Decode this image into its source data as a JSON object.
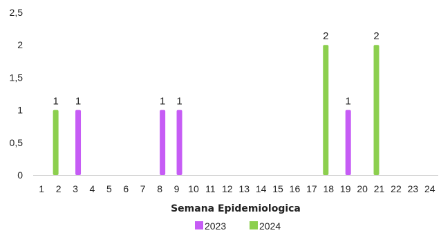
{
  "chart_data": {
    "type": "bar",
    "title": "",
    "xlabel": "Semana Epidemiologica",
    "ylabel": "",
    "ylim": [
      0,
      2.5
    ],
    "yticks": [
      "0",
      "0,5",
      "1",
      "1,5",
      "2",
      "2,5"
    ],
    "categories": [
      "1",
      "2",
      "3",
      "4",
      "5",
      "6",
      "7",
      "8",
      "9",
      "10",
      "11",
      "12",
      "13",
      "14",
      "15",
      "16",
      "17",
      "18",
      "19",
      "20",
      "21",
      "22",
      "23",
      "24"
    ],
    "series": [
      {
        "name": "2023",
        "color": "#c65cf5",
        "values": [
          null,
          null,
          1,
          null,
          null,
          null,
          null,
          1,
          1,
          null,
          null,
          null,
          null,
          null,
          null,
          null,
          null,
          null,
          1,
          null,
          null,
          null,
          null,
          null
        ]
      },
      {
        "name": "2024",
        "color": "#8ccf4e",
        "values": [
          null,
          1,
          null,
          null,
          null,
          null,
          null,
          null,
          null,
          null,
          null,
          null,
          null,
          null,
          null,
          null,
          null,
          2,
          null,
          null,
          2,
          null,
          null,
          null
        ]
      }
    ],
    "grid": false,
    "legend_position": "bottom"
  }
}
